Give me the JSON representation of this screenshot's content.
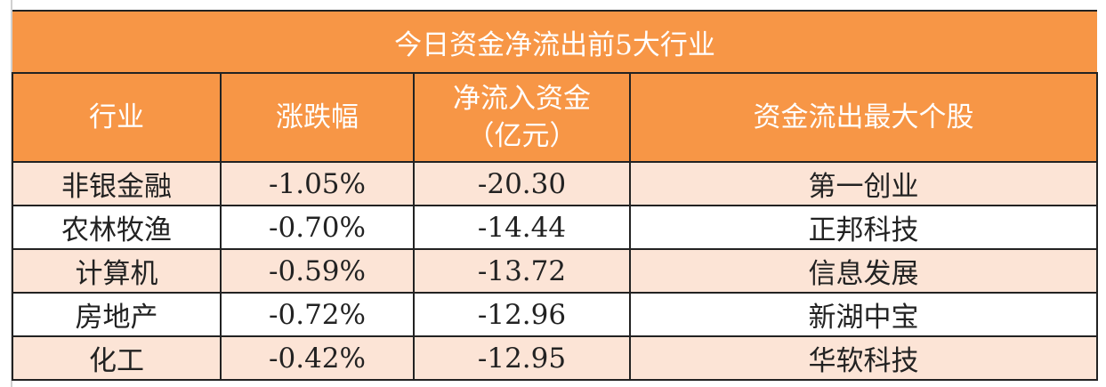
{
  "title": "今日资金净流出前5大行业",
  "headers": [
    "行业",
    "涨跌幅",
    "净流入资金",
    "（亿元）",
    "资金流出最大个股"
  ],
  "rows": [
    {
      "industry": "非银金融",
      "change": "-1.05%",
      "net_inflow": "-20.30",
      "top_stock": "第一创业"
    },
    {
      "industry": "农林牧渔",
      "change": "-0.70%",
      "net_inflow": "-14.44",
      "top_stock": "正邦科技"
    },
    {
      "industry": "计算机",
      "change": "-0.59%",
      "net_inflow": "-13.72",
      "top_stock": "信息发展"
    },
    {
      "industry": "房地产",
      "change": "-0.72%",
      "net_inflow": "-12.96",
      "top_stock": "新湖中宝"
    },
    {
      "industry": "化工",
      "change": "-0.42%",
      "net_inflow": "-12.95",
      "top_stock": "华软科技"
    }
  ],
  "colors": {
    "header": "#f79646",
    "band": "#fce4d6"
  }
}
